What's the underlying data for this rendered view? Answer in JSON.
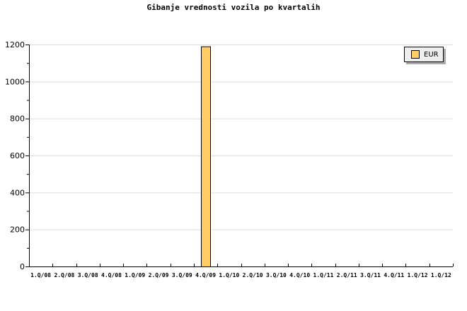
{
  "chart_data": {
    "type": "bar",
    "title": "Gibanje vrednosti vozila po kvartalih",
    "xlabel": "",
    "ylabel": "",
    "categories": [
      "1.Q/08",
      "2.Q/08",
      "3.Q/08",
      "4.Q/08",
      "1.Q/09",
      "2.Q/09",
      "3.Q/09",
      "4.Q/09",
      "1.Q/10",
      "2.Q/10",
      "3.Q/10",
      "4.Q/10",
      "1.Q/11",
      "2.Q/11",
      "3.Q/11",
      "4.Q/11",
      "1.Q/12",
      "1.Q/12"
    ],
    "series": [
      {
        "name": "EUR",
        "values": [
          0,
          0,
          0,
          0,
          0,
          0,
          0,
          1190,
          0,
          0,
          0,
          0,
          0,
          0,
          0,
          0,
          0,
          0
        ],
        "color": "#ffcc66"
      }
    ],
    "ylim": [
      0,
      1200
    ],
    "yticks": [
      0,
      200,
      400,
      600,
      800,
      1000,
      1200
    ],
    "grid": true,
    "legend": "top-right"
  }
}
